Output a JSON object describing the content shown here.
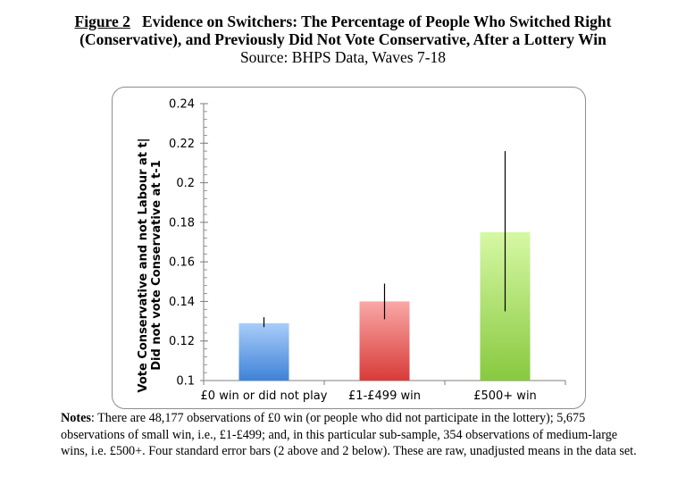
{
  "title": {
    "figure_label": "Figure 2",
    "line1": "Evidence on Switchers: The Percentage of People Who Switched Right",
    "line2": "(Conservative), and Previously Did Not Vote Conservative, After a Lottery Win",
    "source": "Source: BHPS Data, Waves 7-18"
  },
  "chart_data": {
    "type": "bar",
    "categories": [
      "£0 win or did not play",
      "£1-£499 win",
      "£500+ win"
    ],
    "values": [
      0.129,
      0.14,
      0.175
    ],
    "error_low": [
      0.127,
      0.131,
      0.135
    ],
    "error_high": [
      0.132,
      0.149,
      0.216
    ],
    "bar_colors": [
      [
        "#a9cdf9",
        "#3f82d8"
      ],
      [
        "#f9a8a6",
        "#d83b39"
      ],
      [
        "#d6f8a4",
        "#88c93f"
      ]
    ],
    "ylim": [
      0.1,
      0.24
    ],
    "yticks": [
      "0.1",
      "0.12",
      "0.14",
      "0.16",
      "0.18",
      "0.2",
      "0.22",
      "0.24"
    ],
    "ylabel_line1": "Vote Conservative and not Labour at t|",
    "ylabel_line2": "Did not vote Conservative at t-1",
    "xlabel": "",
    "legend": "none",
    "grid": false
  },
  "notes": {
    "label": "Notes",
    "text": ": There are 48,177 observations of £0 win (or people who did not participate in the lottery); 5,675 observations of small win, i.e., £1-£499; and, in this particular sub-sample, 354 observations of medium-large wins, i.e. £500+. Four standard error bars (2 above and 2 below). These are raw, unadjusted means in the data set."
  }
}
